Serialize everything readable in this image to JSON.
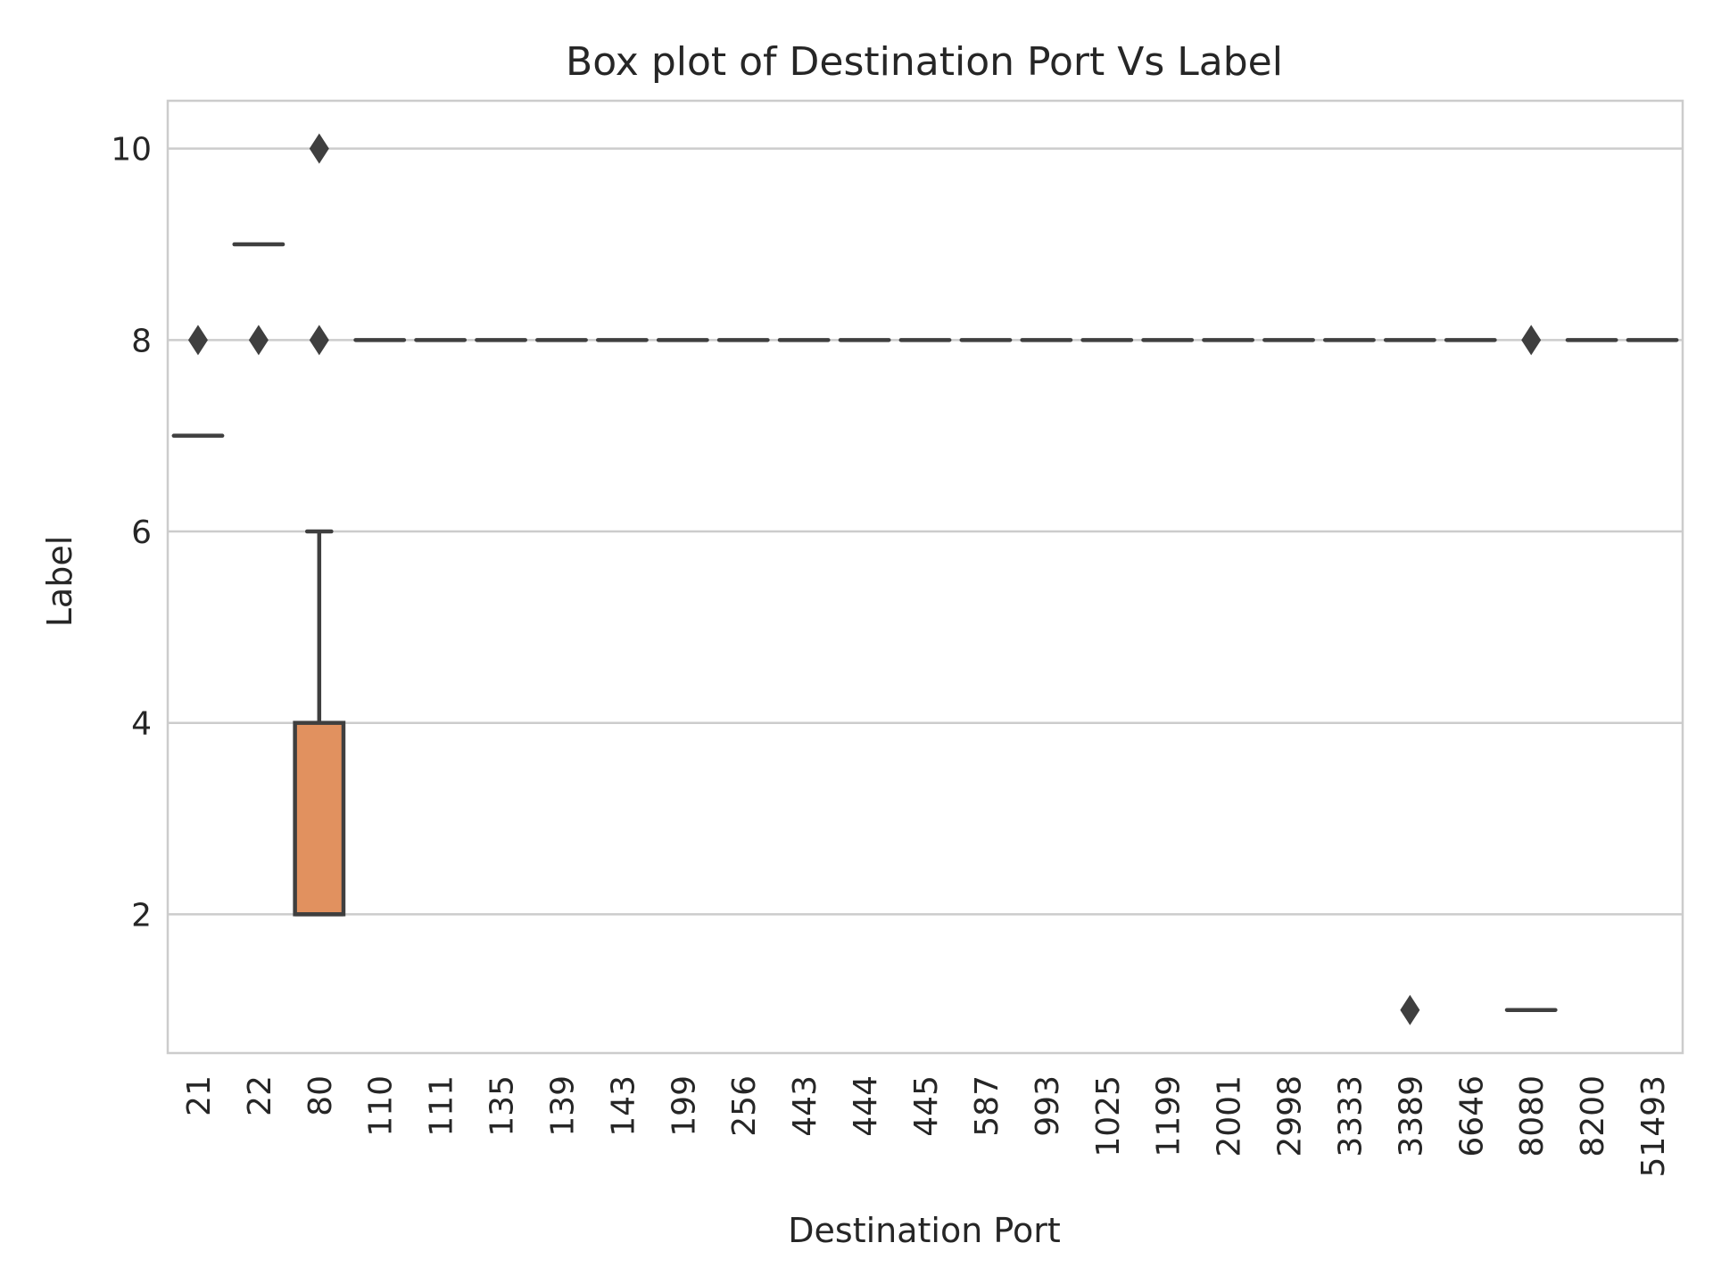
{
  "chart_data": {
    "type": "box",
    "title": "Box plot of Destination Port Vs Label",
    "xlabel": "Destination Port",
    "ylabel": "Label",
    "ylim": [
      0.55,
      10.5
    ],
    "yticks": [
      "2",
      "4",
      "6",
      "8",
      "10"
    ],
    "ytick_values": [
      2,
      4,
      6,
      8,
      10
    ],
    "grid": "horizontal",
    "categories": [
      "21",
      "22",
      "80",
      "110",
      "111",
      "135",
      "139",
      "143",
      "199",
      "256",
      "443",
      "444",
      "445",
      "587",
      "993",
      "1025",
      "1199",
      "2001",
      "2998",
      "3333",
      "3389",
      "6646",
      "8080",
      "8200",
      "51493"
    ],
    "boxes": [
      {
        "category": "21",
        "q1": 7,
        "median": 7,
        "q3": 7,
        "whisker_low": 7,
        "whisker_high": 7,
        "outliers": [
          8
        ]
      },
      {
        "category": "22",
        "q1": 9,
        "median": 9,
        "q3": 9,
        "whisker_low": 9,
        "whisker_high": 9,
        "outliers": [
          8
        ]
      },
      {
        "category": "80",
        "q1": 2,
        "median": 2,
        "q3": 4,
        "whisker_low": 2,
        "whisker_high": 6,
        "outliers": [
          8,
          10
        ]
      },
      {
        "category": "110",
        "q1": 8,
        "median": 8,
        "q3": 8,
        "whisker_low": 8,
        "whisker_high": 8,
        "outliers": []
      },
      {
        "category": "111",
        "q1": 8,
        "median": 8,
        "q3": 8,
        "whisker_low": 8,
        "whisker_high": 8,
        "outliers": []
      },
      {
        "category": "135",
        "q1": 8,
        "median": 8,
        "q3": 8,
        "whisker_low": 8,
        "whisker_high": 8,
        "outliers": []
      },
      {
        "category": "139",
        "q1": 8,
        "median": 8,
        "q3": 8,
        "whisker_low": 8,
        "whisker_high": 8,
        "outliers": []
      },
      {
        "category": "143",
        "q1": 8,
        "median": 8,
        "q3": 8,
        "whisker_low": 8,
        "whisker_high": 8,
        "outliers": []
      },
      {
        "category": "199",
        "q1": 8,
        "median": 8,
        "q3": 8,
        "whisker_low": 8,
        "whisker_high": 8,
        "outliers": []
      },
      {
        "category": "256",
        "q1": 8,
        "median": 8,
        "q3": 8,
        "whisker_low": 8,
        "whisker_high": 8,
        "outliers": []
      },
      {
        "category": "443",
        "q1": 8,
        "median": 8,
        "q3": 8,
        "whisker_low": 8,
        "whisker_high": 8,
        "outliers": []
      },
      {
        "category": "444",
        "q1": 8,
        "median": 8,
        "q3": 8,
        "whisker_low": 8,
        "whisker_high": 8,
        "outliers": []
      },
      {
        "category": "445",
        "q1": 8,
        "median": 8,
        "q3": 8,
        "whisker_low": 8,
        "whisker_high": 8,
        "outliers": []
      },
      {
        "category": "587",
        "q1": 8,
        "median": 8,
        "q3": 8,
        "whisker_low": 8,
        "whisker_high": 8,
        "outliers": []
      },
      {
        "category": "993",
        "q1": 8,
        "median": 8,
        "q3": 8,
        "whisker_low": 8,
        "whisker_high": 8,
        "outliers": []
      },
      {
        "category": "1025",
        "q1": 8,
        "median": 8,
        "q3": 8,
        "whisker_low": 8,
        "whisker_high": 8,
        "outliers": []
      },
      {
        "category": "1199",
        "q1": 8,
        "median": 8,
        "q3": 8,
        "whisker_low": 8,
        "whisker_high": 8,
        "outliers": []
      },
      {
        "category": "2001",
        "q1": 8,
        "median": 8,
        "q3": 8,
        "whisker_low": 8,
        "whisker_high": 8,
        "outliers": []
      },
      {
        "category": "2998",
        "q1": 8,
        "median": 8,
        "q3": 8,
        "whisker_low": 8,
        "whisker_high": 8,
        "outliers": []
      },
      {
        "category": "3333",
        "q1": 8,
        "median": 8,
        "q3": 8,
        "whisker_low": 8,
        "whisker_high": 8,
        "outliers": []
      },
      {
        "category": "3389",
        "q1": 8,
        "median": 8,
        "q3": 8,
        "whisker_low": 8,
        "whisker_high": 8,
        "outliers": [
          1
        ]
      },
      {
        "category": "6646",
        "q1": 8,
        "median": 8,
        "q3": 8,
        "whisker_low": 8,
        "whisker_high": 8,
        "outliers": []
      },
      {
        "category": "8080",
        "q1": 1,
        "median": 1,
        "q3": 1,
        "whisker_low": 1,
        "whisker_high": 1,
        "outliers": [
          8
        ]
      },
      {
        "category": "8200",
        "q1": 8,
        "median": 8,
        "q3": 8,
        "whisker_low": 8,
        "whisker_high": 8,
        "outliers": []
      },
      {
        "category": "51493",
        "q1": 8,
        "median": 8,
        "q3": 8,
        "whisker_low": 8,
        "whisker_high": 8,
        "outliers": []
      }
    ],
    "colors": {
      "box_fill": "#e1915f",
      "line": "#3f3f3f",
      "grid": "#cccccc",
      "frame": "#cccccc",
      "text": "#262626"
    }
  }
}
